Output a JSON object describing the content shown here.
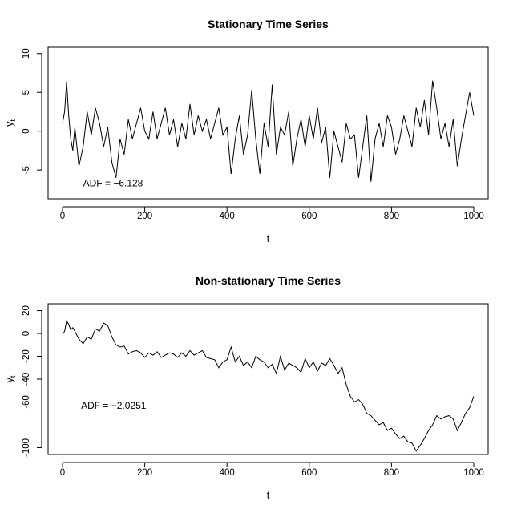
{
  "chart_data": [
    {
      "type": "line",
      "title": "Stationary Time Series",
      "xlabel": "t",
      "ylabel": "y",
      "ylabel_sub": "t",
      "xlim": [
        0,
        1000
      ],
      "ylim": [
        -8.7,
        10.8
      ],
      "xticks": [
        0,
        200,
        400,
        600,
        800,
        1000
      ],
      "yticks": [
        -5,
        0,
        5,
        10
      ],
      "grid": false,
      "annotation": {
        "text": "ADF = −6.128",
        "x": 50,
        "y": -6.7
      },
      "series": [
        {
          "color": "#000000",
          "x": [
            0,
            5,
            10,
            15,
            20,
            25,
            30,
            40,
            50,
            60,
            70,
            80,
            90,
            100,
            110,
            120,
            130,
            140,
            150,
            160,
            170,
            180,
            190,
            200,
            210,
            220,
            230,
            240,
            250,
            260,
            270,
            280,
            290,
            300,
            310,
            320,
            330,
            340,
            350,
            360,
            370,
            380,
            390,
            400,
            410,
            420,
            430,
            440,
            450,
            460,
            470,
            480,
            490,
            500,
            510,
            520,
            530,
            540,
            550,
            560,
            570,
            580,
            590,
            600,
            610,
            620,
            630,
            640,
            650,
            660,
            670,
            680,
            690,
            700,
            710,
            720,
            730,
            740,
            750,
            760,
            770,
            780,
            790,
            800,
            810,
            820,
            830,
            840,
            850,
            860,
            870,
            880,
            890,
            900,
            910,
            920,
            930,
            940,
            950,
            960,
            970,
            980,
            990,
            1000
          ],
          "y": [
            1,
            2.5,
            6.4,
            2,
            -1,
            -2.5,
            0.5,
            -4.5,
            -2,
            2.5,
            -0.5,
            3,
            1,
            -2,
            0.5,
            -4,
            -6,
            -1,
            -3,
            1.5,
            -1,
            1,
            3,
            0,
            -1,
            2.5,
            -1,
            1,
            3,
            -0.5,
            1.5,
            -2,
            1,
            -1,
            3.5,
            -0.5,
            2,
            0,
            1.5,
            -1,
            1,
            3,
            -0.5,
            0.5,
            -5.5,
            -1,
            2,
            -3,
            -0.5,
            5.3,
            -1,
            -5.5,
            1,
            -2,
            6,
            -3,
            0.5,
            -0.5,
            2.5,
            -4.5,
            -1,
            1.5,
            -2,
            2,
            -1,
            3,
            -1.5,
            0.5,
            -6,
            0,
            -2,
            -4,
            1,
            -1,
            -0.5,
            -6,
            -2,
            2,
            -6.5,
            -1,
            1,
            -2,
            2,
            0.5,
            -3,
            -1,
            2,
            0,
            -2,
            3,
            0.5,
            4,
            -0.5,
            6.5,
            3,
            -1,
            1,
            -2,
            1.5,
            -4.5,
            -1,
            2,
            5,
            2
          ]
        }
      ]
    },
    {
      "type": "line",
      "title": "Non-stationary Time Series",
      "xlabel": "t",
      "ylabel": "y",
      "ylabel_sub": "t",
      "xlim": [
        0,
        1000
      ],
      "ylim": [
        -106,
        26
      ],
      "xticks": [
        0,
        200,
        400,
        600,
        800,
        1000
      ],
      "yticks": [
        -100,
        -60,
        -40,
        -20,
        0,
        20
      ],
      "grid": false,
      "annotation": {
        "text": "ADF = −2.0251",
        "x": 45,
        "y": -63
      },
      "series": [
        {
          "color": "#000000",
          "x": [
            0,
            5,
            10,
            15,
            20,
            25,
            30,
            40,
            50,
            60,
            70,
            80,
            90,
            100,
            110,
            120,
            130,
            140,
            150,
            160,
            170,
            180,
            190,
            200,
            210,
            220,
            230,
            240,
            250,
            260,
            270,
            280,
            290,
            300,
            310,
            320,
            330,
            340,
            350,
            360,
            370,
            380,
            390,
            400,
            410,
            420,
            430,
            440,
            450,
            460,
            470,
            480,
            490,
            500,
            510,
            520,
            530,
            540,
            550,
            560,
            570,
            580,
            590,
            600,
            610,
            620,
            630,
            640,
            650,
            660,
            670,
            680,
            690,
            700,
            710,
            720,
            730,
            740,
            750,
            760,
            770,
            780,
            790,
            800,
            810,
            820,
            830,
            840,
            850,
            860,
            870,
            880,
            890,
            900,
            910,
            920,
            930,
            940,
            950,
            960,
            970,
            980,
            990,
            1000
          ],
          "y": [
            -1,
            2,
            11,
            8,
            3,
            5,
            2,
            -5,
            -9,
            -3,
            -5,
            4,
            2,
            9,
            7,
            -3,
            -10,
            -12,
            -11,
            -18,
            -16,
            -15,
            -17,
            -21,
            -17,
            -19,
            -16,
            -21,
            -19,
            -17,
            -18,
            -21,
            -17,
            -20,
            -15,
            -19,
            -17,
            -15,
            -21,
            -22,
            -23,
            -30,
            -25,
            -23,
            -12,
            -25,
            -20,
            -28,
            -25,
            -30,
            -20,
            -23,
            -25,
            -30,
            -27,
            -35,
            -20,
            -32,
            -26,
            -28,
            -30,
            -34,
            -22,
            -30,
            -25,
            -33,
            -26,
            -28,
            -22,
            -28,
            -35,
            -30,
            -45,
            -55,
            -60,
            -58,
            -62,
            -70,
            -72,
            -76,
            -80,
            -78,
            -85,
            -83,
            -88,
            -92,
            -90,
            -95,
            -96,
            -103,
            -98,
            -92,
            -85,
            -80,
            -72,
            -75,
            -73,
            -72,
            -75,
            -85,
            -78,
            -70,
            -65,
            -55
          ]
        }
      ]
    }
  ]
}
